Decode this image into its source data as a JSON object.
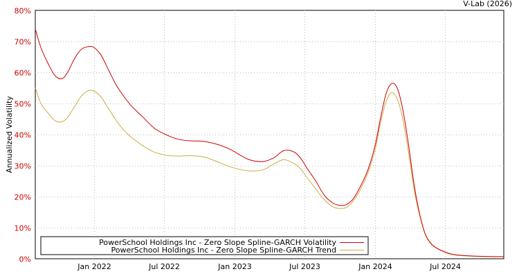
{
  "chart_data": {
    "type": "line",
    "credit": "V-Lab (2026)",
    "ylabel": "Annualized Volatility",
    "ylim": [
      0,
      80
    ],
    "xlim": [
      2021.58,
      2024.92
    ],
    "y_ticks": [
      {
        "value": 0,
        "label": "0%"
      },
      {
        "value": 10,
        "label": "10%"
      },
      {
        "value": 20,
        "label": "20%"
      },
      {
        "value": 30,
        "label": "30%"
      },
      {
        "value": 40,
        "label": "40%"
      },
      {
        "value": 50,
        "label": "50%"
      },
      {
        "value": 60,
        "label": "60%"
      },
      {
        "value": 70,
        "label": "70%"
      },
      {
        "value": 80,
        "label": "80%"
      }
    ],
    "x_ticks": [
      {
        "value": 2022.0,
        "label": "Jan 2022"
      },
      {
        "value": 2022.5,
        "label": "Jul 2022"
      },
      {
        "value": 2023.0,
        "label": "Jan 2023"
      },
      {
        "value": 2023.5,
        "label": "Jul 2023"
      },
      {
        "value": 2024.0,
        "label": "Jan 2024"
      },
      {
        "value": 2024.5,
        "label": "Jul 2024"
      }
    ],
    "colors": {
      "volatility": "#cc0000",
      "trend": "#ccaa44",
      "grid": "#bbbbbb"
    },
    "series": [
      {
        "name": "PowerSchool Holdings Inc - Zero Slope Spline-GARCH Volatility",
        "color": "#cc0000",
        "x": [
          2021.58,
          2021.62,
          2021.67,
          2021.72,
          2021.77,
          2021.81,
          2021.86,
          2021.91,
          2021.96,
          2022.0,
          2022.05,
          2022.1,
          2022.15,
          2022.2,
          2022.26,
          2022.35,
          2022.43,
          2022.52,
          2022.6,
          2022.68,
          2022.78,
          2022.88,
          2022.97,
          2023.1,
          2023.2,
          2023.28,
          2023.35,
          2023.42,
          2023.47,
          2023.52,
          2023.58,
          2023.64,
          2023.7,
          2023.75,
          2023.8,
          2023.85,
          2023.9,
          2023.95,
          2024.0,
          2024.04,
          2024.08,
          2024.12,
          2024.16,
          2024.2,
          2024.24,
          2024.28,
          2024.32,
          2024.36,
          2024.4,
          2024.44,
          2024.5,
          2024.56,
          2024.65,
          2024.75,
          2024.85,
          2024.92
        ],
        "values": [
          74,
          68,
          63,
          59,
          58,
          60,
          64.5,
          67.5,
          68.3,
          68,
          65.5,
          61,
          56.5,
          53,
          49.5,
          45.5,
          42,
          39.8,
          38.5,
          38,
          37.8,
          36.8,
          35.2,
          32,
          31.3,
          32.5,
          34.8,
          34.5,
          32.5,
          29,
          25,
          20.5,
          18,
          17.2,
          17.5,
          19.5,
          23.5,
          28.5,
          36,
          45,
          53,
          56.4,
          55,
          48,
          37,
          24,
          14.5,
          8,
          5,
          3.5,
          2.2,
          1.4,
          1,
          0.8,
          0.7,
          0.7
        ]
      },
      {
        "name": "PowerSchool Holdings Inc - Zero Slope Spline-GARCH Trend",
        "color": "#ccaa44",
        "x": [
          2021.58,
          2021.62,
          2021.67,
          2021.72,
          2021.77,
          2021.81,
          2021.86,
          2021.91,
          2021.96,
          2022.0,
          2022.05,
          2022.1,
          2022.15,
          2022.2,
          2022.26,
          2022.35,
          2022.43,
          2022.52,
          2022.6,
          2022.68,
          2022.78,
          2022.88,
          2022.97,
          2023.1,
          2023.2,
          2023.28,
          2023.35,
          2023.42,
          2023.47,
          2023.52,
          2023.58,
          2023.64,
          2023.7,
          2023.75,
          2023.8,
          2023.85,
          2023.9,
          2023.95,
          2024.0,
          2024.04,
          2024.08,
          2024.12,
          2024.16,
          2024.2,
          2024.24,
          2024.28,
          2024.32,
          2024.36,
          2024.4,
          2024.44,
          2024.5,
          2024.56,
          2024.65,
          2024.75,
          2024.85,
          2024.92
        ],
        "values": [
          55,
          50,
          47,
          44.5,
          44.1,
          45.5,
          49,
          52.5,
          54.1,
          54,
          52,
          48.5,
          45,
          42,
          39.3,
          36.3,
          34.3,
          33.3,
          33.1,
          33.2,
          32.8,
          31.2,
          29.6,
          28.3,
          28.6,
          30.5,
          31.9,
          30.8,
          29,
          26,
          22.5,
          19,
          16.8,
          16.2,
          16.6,
          18.8,
          22.5,
          27.5,
          34.5,
          43.5,
          50.5,
          53.5,
          51.5,
          45,
          34.5,
          22.5,
          14,
          7.8,
          4.8,
          3.4,
          2.1,
          1.3,
          0.9,
          0.75,
          0.65,
          0.65
        ]
      }
    ]
  }
}
